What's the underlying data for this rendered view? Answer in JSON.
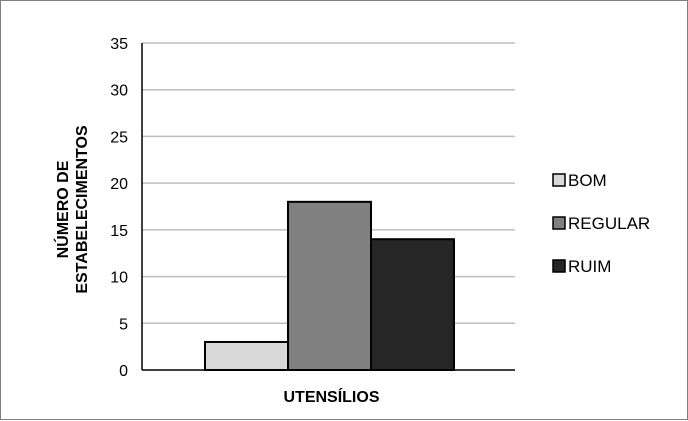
{
  "chart_data": {
    "type": "bar",
    "title": "",
    "xlabel": "UTENSÍLIOS",
    "ylabel_lines": [
      "NÚMERO DE",
      "ESTABELECIMENTOS"
    ],
    "categories": [
      "UTENSÍLIOS"
    ],
    "series": [
      {
        "name": "BOM",
        "values": [
          3
        ],
        "color": "#d9d9d9"
      },
      {
        "name": "REGULAR",
        "values": [
          18
        ],
        "color": "#808080"
      },
      {
        "name": "RUIM",
        "values": [
          14
        ],
        "color": "#262626"
      }
    ],
    "ylim": [
      0,
      35
    ],
    "yticks": [
      0,
      5,
      10,
      15,
      20,
      25,
      30,
      35
    ],
    "grid": true,
    "legend_position": "right"
  }
}
